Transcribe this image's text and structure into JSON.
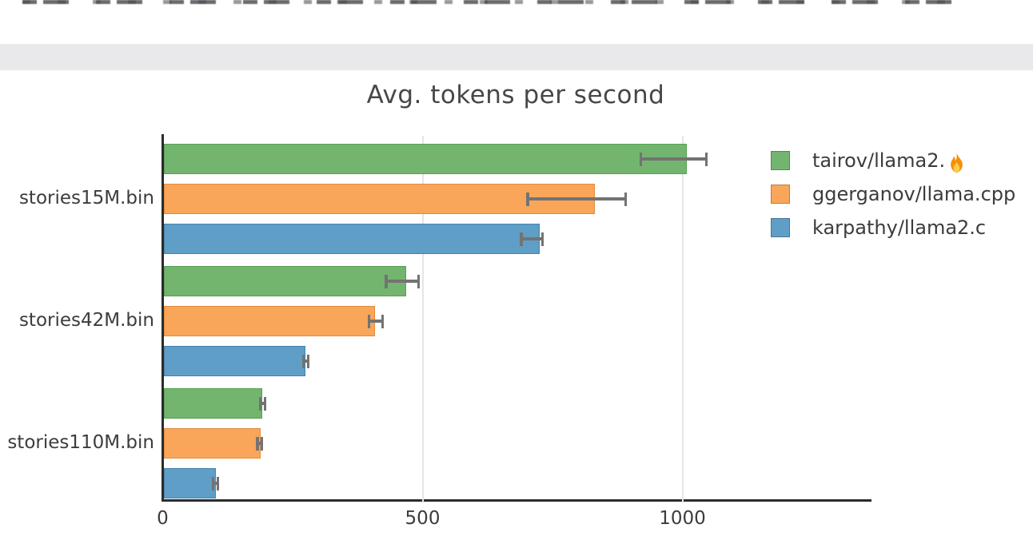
{
  "page": {
    "top_band_color": "#e9e9eb",
    "background_color": "#ffffff"
  },
  "colors": {
    "spine": "#2b2b2b",
    "gridline": "#e5e5e7",
    "error_bar": "#737373",
    "title_text": "#474747",
    "tick_text": "#3c3c3c"
  },
  "chart_data": {
    "type": "bar",
    "orientation": "horizontal",
    "title": "Avg. tokens per second",
    "xlabel": "",
    "ylabel": "",
    "grid": "vertical gridlines at x ticks",
    "legend_position": "upper right, outside plot",
    "xlim": [
      0,
      1350
    ],
    "x_ticks": [
      {
        "label": "0",
        "value": 0
      },
      {
        "label": "500",
        "value": 500
      },
      {
        "label": "1000",
        "value": 1000
      }
    ],
    "categories": [
      "stories15M.bin",
      "stories42M.bin",
      "stories110M.bin"
    ],
    "series": [
      {
        "label": "tairov/llama2.",
        "emoji": "🔥",
        "color": "#73b56f",
        "edge_color": "#55a053",
        "values": [
          1009,
          468,
          191
        ],
        "error_ranges": [
          [
            920,
            1046
          ],
          [
            430,
            492
          ],
          [
            188,
            197
          ]
        ]
      },
      {
        "label": "ggerganov/llama.cpp",
        "emoji": "",
        "color": "#f9a65a",
        "edge_color": "#e18b3b",
        "values": [
          831,
          408,
          188
        ],
        "error_ranges": [
          [
            702,
            891
          ],
          [
            397,
            423
          ],
          [
            182,
            191
          ]
        ]
      },
      {
        "label": "karpathy/llama2.c",
        "emoji": "",
        "color": "#5f9ec7",
        "edge_color": "#4583ad",
        "values": [
          725,
          274,
          102
        ],
        "error_ranges": [
          [
            690,
            731
          ],
          [
            271,
            280
          ],
          [
            97,
            106
          ]
        ]
      }
    ]
  }
}
